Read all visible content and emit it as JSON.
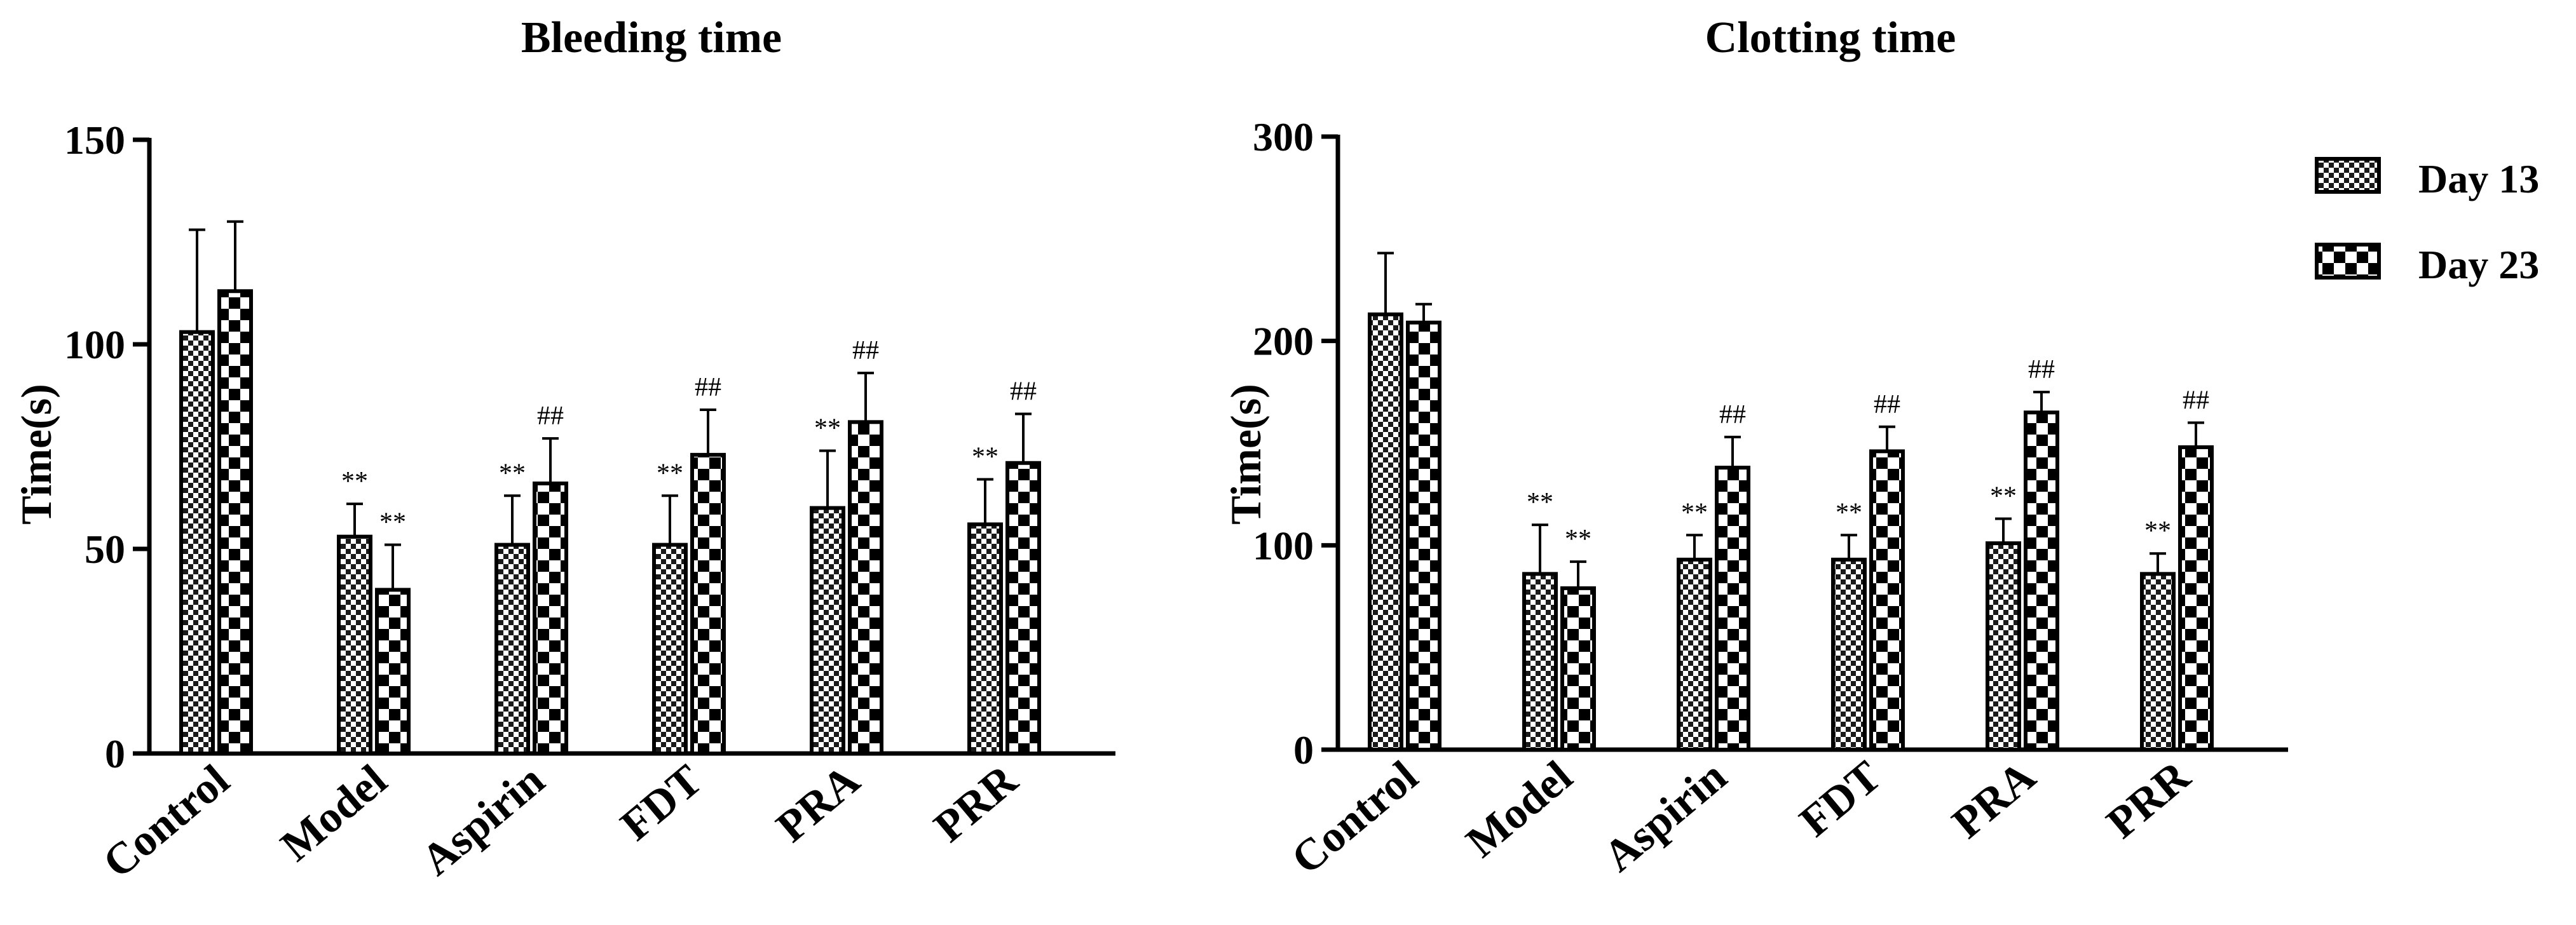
{
  "chart_data": [
    {
      "type": "bar",
      "title": "Bleeding time",
      "xlabel": "",
      "ylabel": "Time(s)",
      "ylim": [
        0,
        150
      ],
      "yticks": [
        0,
        50,
        100,
        150
      ],
      "categories": [
        "Control",
        "Model",
        "Aspirin",
        "FDT",
        "PRA",
        "PRR"
      ],
      "series": [
        {
          "name": "Day 13",
          "values": [
            103,
            53,
            51,
            51,
            60,
            56
          ],
          "errors": [
            25,
            8,
            12,
            12,
            14,
            11
          ],
          "annotations": [
            "",
            "**",
            "**",
            "**",
            "**",
            "**"
          ]
        },
        {
          "name": "Day 23",
          "values": [
            113,
            40,
            66,
            73,
            81,
            71
          ],
          "errors": [
            17,
            11,
            11,
            11,
            12,
            12
          ],
          "annotations": [
            "",
            "**",
            "##",
            "##",
            "##",
            "##"
          ]
        }
      ]
    },
    {
      "type": "bar",
      "title": "Clotting time",
      "xlabel": "",
      "ylabel": "Time(s)",
      "ylim": [
        0,
        300
      ],
      "yticks": [
        0,
        100,
        200,
        300
      ],
      "categories": [
        "Control",
        "Model",
        "Aspirin",
        "FDT",
        "PRA",
        "PRR"
      ],
      "series": [
        {
          "name": "Day 13",
          "values": [
            213,
            86,
            93,
            93,
            101,
            86
          ],
          "errors": [
            30,
            24,
            12,
            12,
            12,
            10
          ],
          "annotations": [
            "",
            "**",
            "**",
            "**",
            "**",
            "**"
          ]
        },
        {
          "name": "Day 23",
          "values": [
            209,
            79,
            138,
            146,
            165,
            148
          ],
          "errors": [
            9,
            13,
            15,
            12,
            10,
            12
          ],
          "annotations": [
            "",
            "**",
            "##",
            "##",
            "##",
            "##"
          ]
        }
      ]
    }
  ],
  "legend": {
    "position": "top-right",
    "items": [
      "Day 13",
      "Day 23"
    ]
  }
}
